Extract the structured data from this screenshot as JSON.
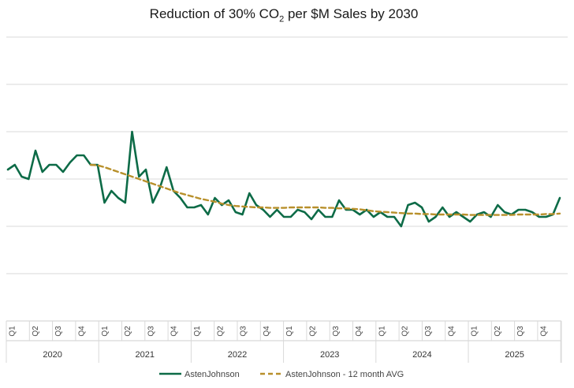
{
  "chart_data": {
    "type": "line",
    "title": {
      "before": "Reduction of 30% CO",
      "sub": "2",
      "after": " per $M Sales by 2030"
    },
    "ylim": [
      0,
      6
    ],
    "grid": true,
    "legend_position": "bottom",
    "x_axis": {
      "quarter_labels": [
        "Q1",
        "Q2",
        "Q3",
        "Q4",
        "Q1",
        "Q2",
        "Q3",
        "Q4",
        "Q1",
        "Q2",
        "Q3",
        "Q4",
        "Q1",
        "Q2",
        "Q3",
        "Q4",
        "Q1",
        "Q2",
        "Q3",
        "Q4",
        "Q1",
        "Q2",
        "Q3",
        "Q4"
      ],
      "years": [
        "2020",
        "2021",
        "2022",
        "2023",
        "2024",
        "2025"
      ]
    },
    "series": [
      {
        "name": "AstenJohnson",
        "color": "#0d6b47",
        "style": "solid",
        "values": [
          3.2,
          3.3,
          3.05,
          3.0,
          3.6,
          3.15,
          3.3,
          3.3,
          3.15,
          3.35,
          3.5,
          3.5,
          3.3,
          3.3,
          2.5,
          2.75,
          2.6,
          2.5,
          4.0,
          3.05,
          3.2,
          2.5,
          2.8,
          3.25,
          2.75,
          2.6,
          2.4,
          2.4,
          2.45,
          2.25,
          2.6,
          2.45,
          2.55,
          2.3,
          2.25,
          2.7,
          2.45,
          2.35,
          2.2,
          2.35,
          2.2,
          2.2,
          2.35,
          2.3,
          2.15,
          2.35,
          2.2,
          2.2,
          2.55,
          2.35,
          2.35,
          2.25,
          2.35,
          2.2,
          2.3,
          2.2,
          2.2,
          2.0,
          2.45,
          2.5,
          2.4,
          2.1,
          2.2,
          2.4,
          2.2,
          2.3,
          2.2,
          2.1,
          2.25,
          2.3,
          2.2,
          2.45,
          2.3,
          2.25,
          2.35,
          2.35,
          2.3,
          2.2,
          2.2,
          2.25,
          2.6
        ]
      },
      {
        "name": "AstenJohnson - 12 month AVG",
        "color": "#b8902b",
        "style": "dashed",
        "values": [
          null,
          null,
          null,
          null,
          null,
          null,
          null,
          null,
          null,
          null,
          null,
          null,
          3.3,
          3.29,
          3.25,
          3.2,
          3.15,
          3.1,
          3.05,
          3.0,
          2.95,
          2.9,
          2.85,
          2.8,
          2.75,
          2.7,
          2.66,
          2.62,
          2.58,
          2.55,
          2.52,
          2.48,
          2.45,
          2.43,
          2.42,
          2.41,
          2.4,
          2.4,
          2.39,
          2.39,
          2.39,
          2.4,
          2.4,
          2.4,
          2.4,
          2.4,
          2.39,
          2.39,
          2.38,
          2.38,
          2.37,
          2.36,
          2.34,
          2.32,
          2.31,
          2.3,
          2.29,
          2.28,
          2.27,
          2.27,
          2.26,
          2.26,
          2.25,
          2.25,
          2.25,
          2.25,
          2.25,
          2.24,
          2.24,
          2.24,
          2.24,
          2.24,
          2.24,
          2.24,
          2.25,
          2.25,
          2.25,
          2.25,
          2.26,
          2.26,
          2.27
        ]
      }
    ]
  }
}
